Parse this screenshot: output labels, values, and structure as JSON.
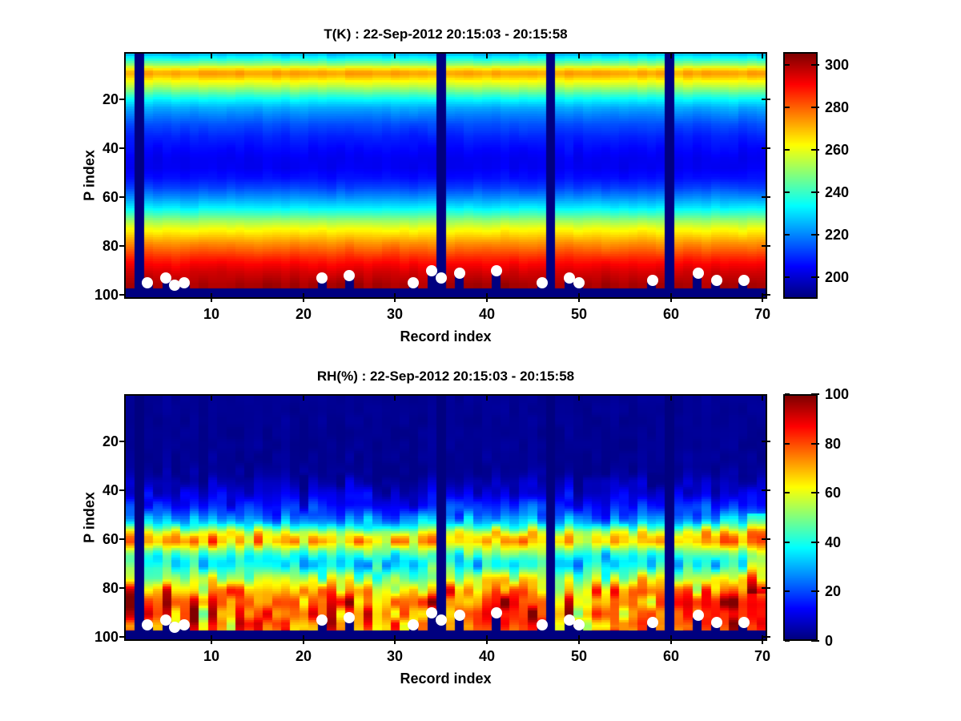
{
  "style": {
    "background": "#ffffff",
    "text_color": "#000000",
    "dot_color": "#ffffff",
    "missing_color": "#000085",
    "colormap": "jet"
  },
  "chart_data": [
    {
      "type": "heatmap",
      "colormap": "jet",
      "title": "T(K) : 22-Sep-2012 20:15:03 - 20:15:58",
      "xlabel": "Record index",
      "ylabel": "P index",
      "x_axis": {
        "range": [
          0.5,
          70.5
        ],
        "ticks": [
          10,
          20,
          30,
          40,
          50,
          60,
          70
        ]
      },
      "y_axis": {
        "range": [
          0.5,
          101.5
        ],
        "ticks": [
          20,
          40,
          60,
          80,
          100
        ],
        "inverted": true
      },
      "colorbar": {
        "vmin": 190,
        "vmax": 306,
        "ticks": [
          200,
          220,
          240,
          260,
          280,
          300
        ]
      },
      "n_records": 70,
      "n_levels": 101,
      "missing_records": [
        2,
        35,
        47,
        60
      ],
      "surface_band_start": 98,
      "surface_dots": [
        {
          "record": 3,
          "p": 95
        },
        {
          "record": 5,
          "p": 93
        },
        {
          "record": 6,
          "p": 96
        },
        {
          "record": 7,
          "p": 95
        },
        {
          "record": 22,
          "p": 93
        },
        {
          "record": 25,
          "p": 92
        },
        {
          "record": 32,
          "p": 95
        },
        {
          "record": 34,
          "p": 90
        },
        {
          "record": 35,
          "p": 93
        },
        {
          "record": 37,
          "p": 91
        },
        {
          "record": 41,
          "p": 90
        },
        {
          "record": 46,
          "p": 95
        },
        {
          "record": 49,
          "p": 93
        },
        {
          "record": 50,
          "p": 95
        },
        {
          "record": 58,
          "p": 94
        },
        {
          "record": 63,
          "p": 91
        },
        {
          "record": 65,
          "p": 94
        },
        {
          "record": 68,
          "p": 94
        }
      ],
      "profile": {
        "p": [
          1,
          3,
          5,
          7,
          8,
          9,
          10,
          12,
          14,
          16,
          18,
          20,
          23,
          26,
          30,
          35,
          40,
          44,
          48,
          52,
          56,
          60,
          64,
          67,
          70,
          73,
          76,
          79,
          82,
          85,
          88,
          91,
          94,
          96,
          101
        ],
        "v": [
          227,
          238,
          250,
          266,
          272,
          273,
          270,
          262,
          255,
          247,
          239,
          232,
          224,
          219,
          213,
          208,
          205,
          203,
          203,
          206,
          212,
          221,
          231,
          241,
          252,
          261,
          268,
          275,
          281,
          287,
          292,
          296,
          299,
          301,
          302
        ]
      },
      "noise": {
        "seed": 42,
        "base_weight": 0.5,
        "band_size": 8,
        "amp_p": [
          1,
          10,
          20,
          40,
          60,
          80,
          96,
          101
        ],
        "amp_v": [
          2.2,
          2.5,
          1.6,
          1.5,
          1.6,
          1.8,
          2.2,
          2.2
        ]
      },
      "anomalies": []
    },
    {
      "type": "heatmap",
      "colormap": "jet",
      "title": "RH(%) : 22-Sep-2012 20:15:03 - 20:15:58",
      "xlabel": "Record index",
      "ylabel": "P index",
      "x_axis": {
        "range": [
          0.5,
          70.5
        ],
        "ticks": [
          10,
          20,
          30,
          40,
          50,
          60,
          70
        ]
      },
      "y_axis": {
        "range": [
          0.5,
          101.5
        ],
        "ticks": [
          20,
          40,
          60,
          80,
          100
        ],
        "inverted": true
      },
      "colorbar": {
        "vmin": 0,
        "vmax": 100,
        "ticks": [
          0,
          20,
          40,
          60,
          80,
          100
        ]
      },
      "n_records": 70,
      "n_levels": 101,
      "missing_records": [
        2,
        35,
        47,
        60
      ],
      "surface_band_start": 98,
      "surface_dots": [
        {
          "record": 3,
          "p": 95
        },
        {
          "record": 5,
          "p": 93
        },
        {
          "record": 6,
          "p": 96
        },
        {
          "record": 7,
          "p": 95
        },
        {
          "record": 22,
          "p": 93
        },
        {
          "record": 25,
          "p": 92
        },
        {
          "record": 32,
          "p": 95
        },
        {
          "record": 34,
          "p": 90
        },
        {
          "record": 35,
          "p": 93
        },
        {
          "record": 37,
          "p": 91
        },
        {
          "record": 41,
          "p": 90
        },
        {
          "record": 46,
          "p": 95
        },
        {
          "record": 49,
          "p": 93
        },
        {
          "record": 50,
          "p": 95
        },
        {
          "record": 58,
          "p": 94
        },
        {
          "record": 63,
          "p": 91
        },
        {
          "record": 65,
          "p": 94
        },
        {
          "record": 68,
          "p": 94
        }
      ],
      "profile": {
        "p": [
          1,
          30,
          34,
          38,
          42,
          46,
          50,
          53,
          55,
          57,
          59,
          61,
          63,
          65,
          67,
          69,
          71,
          73,
          75,
          77,
          79,
          81,
          83,
          85,
          87,
          89,
          91,
          93,
          95,
          96,
          101
        ],
        "v": [
          2,
          2,
          3,
          6,
          10,
          15,
          22,
          32,
          44,
          58,
          66,
          68,
          58,
          47,
          40,
          36,
          37,
          44,
          52,
          58,
          64,
          70,
          74,
          77,
          79,
          80,
          81,
          80,
          78,
          76,
          75
        ]
      },
      "noise": {
        "seed": 1337,
        "base_weight": 0.6,
        "band_size": 5,
        "amp_p": [
          1,
          30,
          35,
          40,
          45,
          50,
          55,
          58,
          62,
          66,
          70,
          74,
          78,
          82,
          86,
          90,
          94,
          96,
          101
        ],
        "amp_v": [
          1,
          2,
          5,
          7,
          8,
          10,
          14,
          15,
          14,
          13,
          13,
          15,
          18,
          22,
          24,
          25,
          24,
          22,
          20
        ]
      },
      "anomalies": [
        {
          "records": [
            69,
            70
          ],
          "p_range": [
            50,
            82
          ],
          "delta": 14
        }
      ]
    }
  ]
}
